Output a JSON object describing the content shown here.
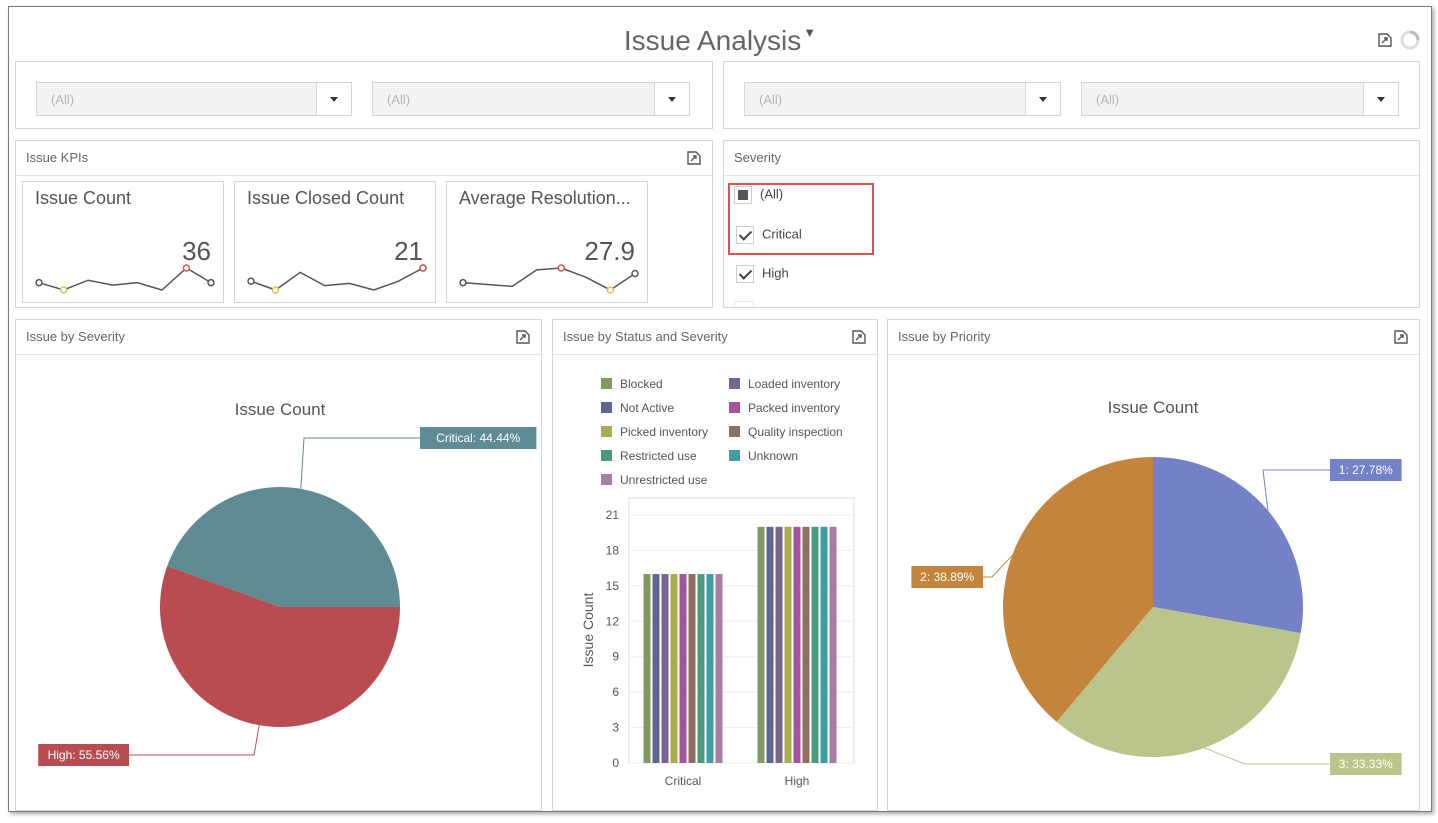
{
  "dashboard": {
    "title": "Issue Analysis"
  },
  "filters": [
    {
      "value": "(All)"
    },
    {
      "value": "(All)"
    },
    {
      "value": "(All)"
    },
    {
      "value": "(All)"
    }
  ],
  "kpis": {
    "title": "Issue KPIs",
    "cards": [
      {
        "title": "Issue Count",
        "value": "36",
        "spark": [
          5,
          2,
          6,
          4,
          5,
          2,
          11,
          5
        ]
      },
      {
        "title": "Issue Closed Count",
        "value": "21",
        "spark": [
          6,
          2,
          10,
          4,
          5,
          2,
          6,
          12
        ]
      },
      {
        "title": "Average Resolution...",
        "value": "27.9",
        "spark": [
          5,
          4,
          3,
          12,
          13,
          8,
          1,
          10
        ]
      }
    ]
  },
  "severity": {
    "title": "Severity",
    "items": [
      {
        "label": "(All)",
        "state": "partial"
      },
      {
        "label": "Critical",
        "state": "checked"
      },
      {
        "label": "High",
        "state": "checked"
      }
    ]
  },
  "chart_data": [
    {
      "type": "pie",
      "panel_title": "Issue by Severity",
      "title": "Issue Count",
      "labels": [
        "Critical",
        "High"
      ],
      "values": [
        44.44,
        55.56
      ],
      "data_labels": [
        "Critical: 44.44%",
        "High: 55.56%"
      ],
      "colors": [
        "#5f8b94",
        "#b84c50"
      ]
    },
    {
      "type": "bar",
      "panel_title": "Issue by Status and Severity",
      "categories": [
        "Critical",
        "High"
      ],
      "ylabel": "Issue Count",
      "ylim": [
        0,
        21
      ],
      "yticks": [
        "0",
        "3",
        "6",
        "9",
        "12",
        "15",
        "18",
        "21"
      ],
      "legend_position": "top",
      "series": [
        {
          "name": "Blocked",
          "color": "#7f9a5e",
          "values": [
            16,
            20
          ]
        },
        {
          "name": "Loaded inventory",
          "color": "#7a6390",
          "values": [
            16,
            20
          ]
        },
        {
          "name": "Not Active",
          "color": "#5e6596",
          "values": [
            16,
            20
          ]
        },
        {
          "name": "Packed inventory",
          "color": "#a4539c",
          "values": [
            16,
            20
          ]
        },
        {
          "name": "Picked inventory",
          "color": "#a8ad4a",
          "values": [
            16,
            20
          ]
        },
        {
          "name": "Quality inspection",
          "color": "#8c7160",
          "values": [
            16,
            20
          ]
        },
        {
          "name": "Restricted use",
          "color": "#4a9a7e",
          "values": [
            16,
            20
          ]
        },
        {
          "name": "Unknown",
          "color": "#3f9ea4",
          "values": [
            16,
            20
          ]
        },
        {
          "name": "Unrestricted use",
          "color": "#a77ca6",
          "values": [
            16,
            20
          ]
        }
      ]
    },
    {
      "type": "pie",
      "panel_title": "Issue by Priority",
      "title": "Issue Count",
      "labels": [
        "1",
        "3",
        "2"
      ],
      "values": [
        27.78,
        33.33,
        38.89
      ],
      "data_labels": [
        "1: 27.78%",
        "3: 33.33%",
        "2: 38.89%"
      ],
      "colors": [
        "#7381c6",
        "#bbc48a",
        "#c4843b"
      ]
    }
  ]
}
